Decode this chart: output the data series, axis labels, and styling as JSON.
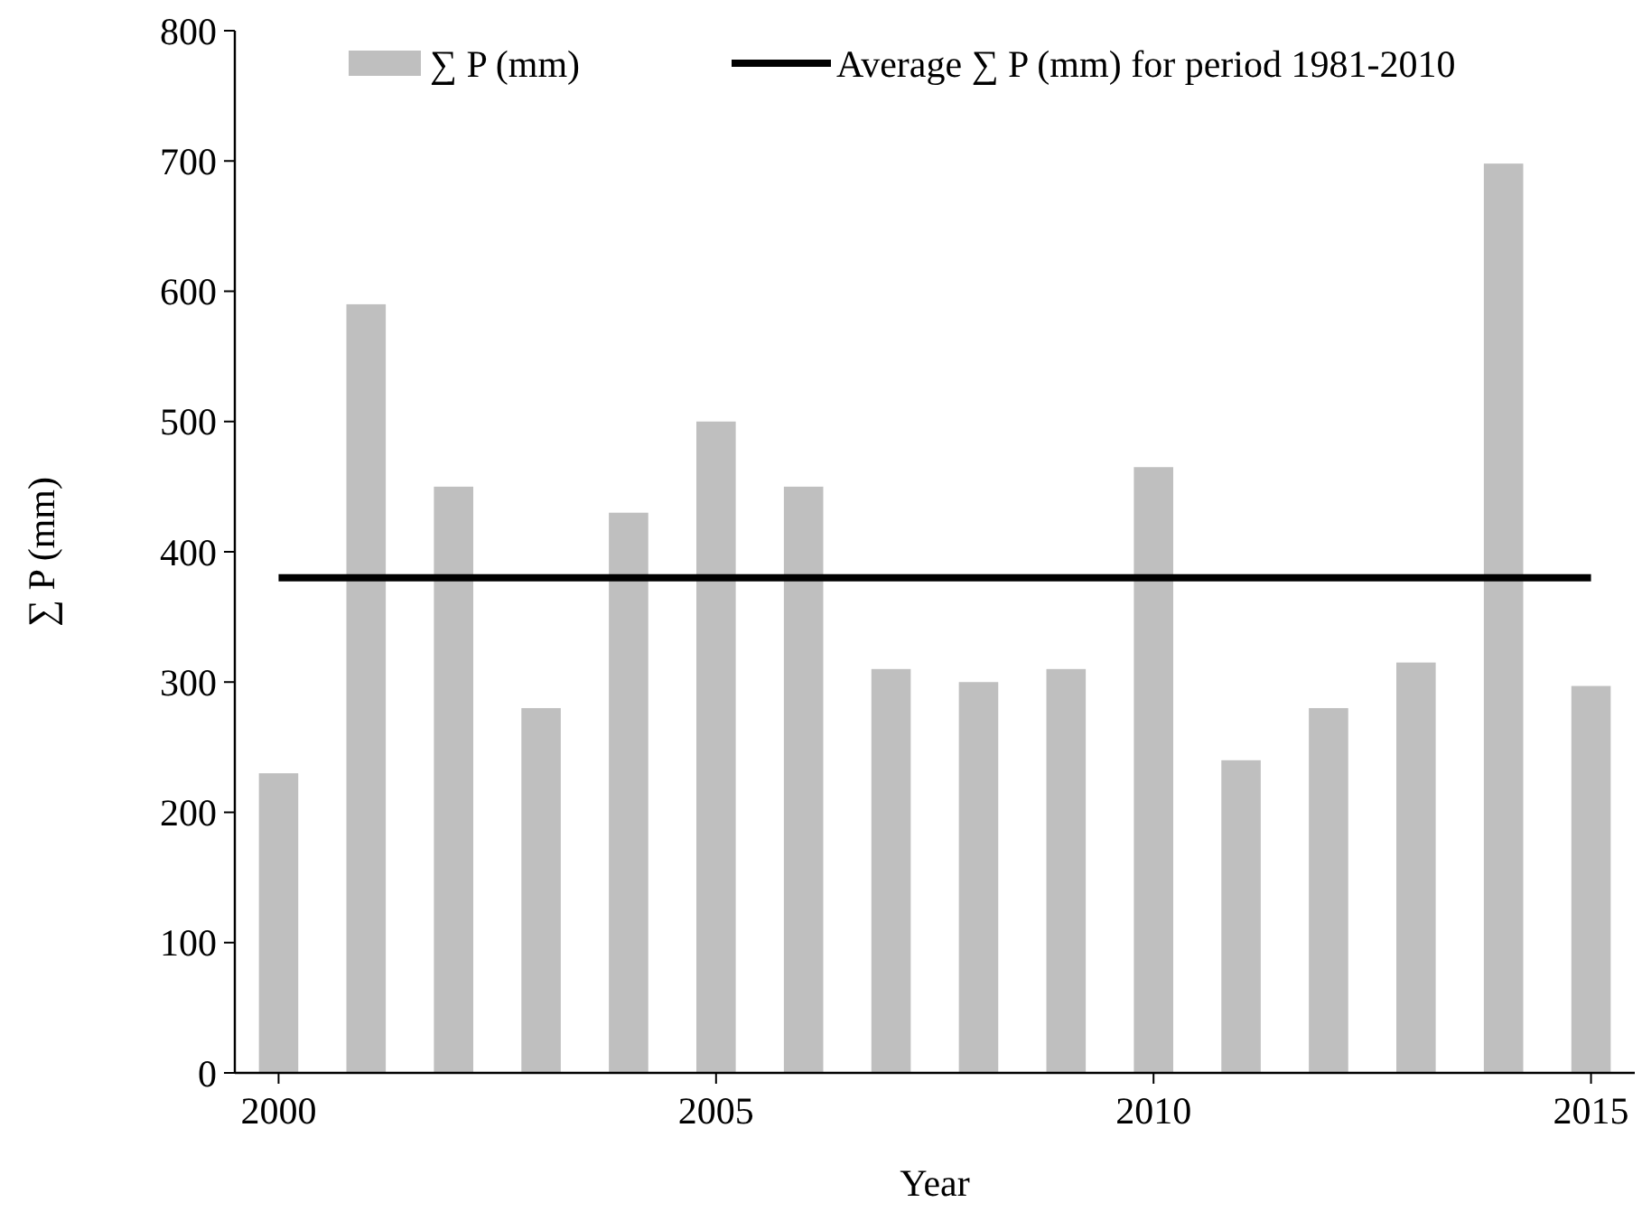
{
  "chart_data": {
    "type": "bar",
    "xlabel": "Year",
    "ylabel": "∑ P (mm)",
    "x": [
      2000,
      2001,
      2002,
      2003,
      2004,
      2005,
      2006,
      2007,
      2008,
      2009,
      2010,
      2011,
      2012,
      2013,
      2014,
      2015
    ],
    "series": [
      {
        "name": "∑ P (mm)",
        "color": "#bfbfbf",
        "values": [
          230,
          590,
          450,
          280,
          430,
          500,
          450,
          310,
          300,
          310,
          465,
          240,
          280,
          315,
          698,
          297
        ]
      },
      {
        "name": "Average ∑ P (mm) for period 1981-2010",
        "type": "line",
        "color": "#000000",
        "values": [
          380,
          380,
          380,
          380,
          380,
          380,
          380,
          380,
          380,
          380,
          380,
          380,
          380,
          380,
          380,
          380
        ]
      }
    ],
    "xlim": [
      1999.5,
      2015.5
    ],
    "xticks": [
      2000,
      2005,
      2010,
      2015
    ],
    "ylim": [
      0,
      800
    ],
    "yticks": [
      0,
      100,
      200,
      300,
      400,
      500,
      600,
      700,
      800
    ],
    "grid": false,
    "legend": "top",
    "marker": "none",
    "line_style": "solid"
  }
}
